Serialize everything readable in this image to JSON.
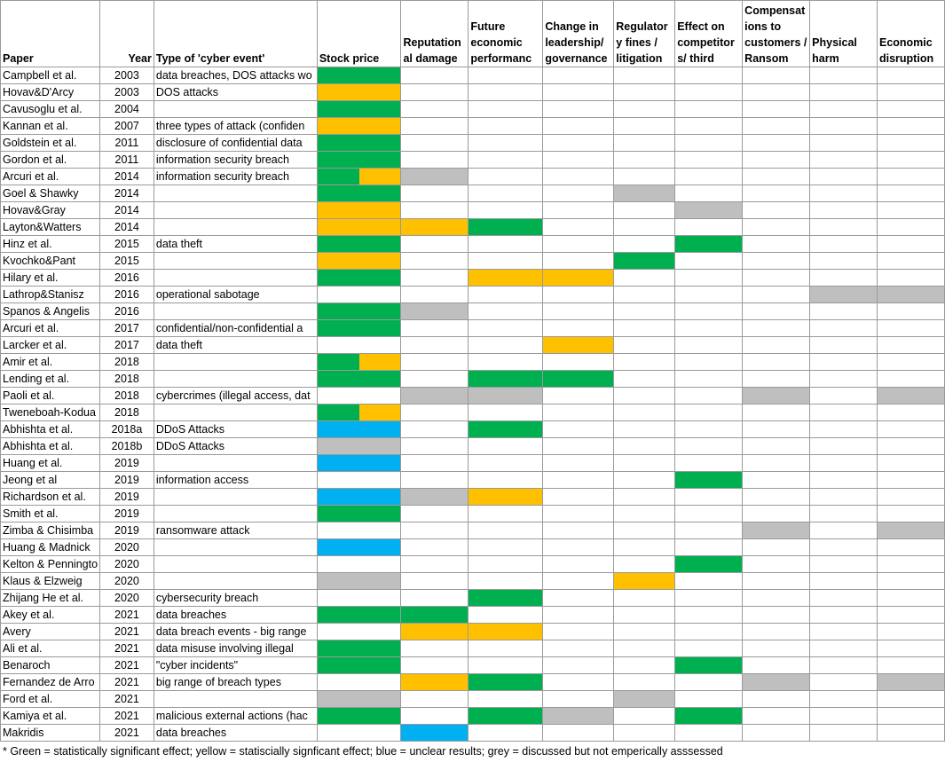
{
  "headers": [
    "Paper",
    "Year",
    "Type of 'cyber event'",
    "Stock price",
    "Reputation al damage",
    "Future economic performanc",
    "Change in leadership/ governance",
    "Regulator y fines / litigation",
    "Effect on competitor s/ third",
    "Compensat ions to customers / Ransom",
    "Physical harm",
    "Economic disruption"
  ],
  "colors": {
    "G": "#00b050",
    "Y": "#ffc000",
    "B": "#00b0f0",
    "R": "#bfbfbf"
  },
  "rows": [
    {
      "paper": "Campbell et al.",
      "year": "2003",
      "type": "data breaches, DOS attacks wo",
      "cells": [
        "G",
        "",
        "",
        "",
        "",
        "",
        "",
        "",
        ""
      ]
    },
    {
      "paper": "Hovav&D'Arcy",
      "year": "2003",
      "type": "DOS attacks",
      "cells": [
        "Y",
        "",
        "",
        "",
        "",
        "",
        "",
        "",
        ""
      ]
    },
    {
      "paper": "Cavusoglu et al.",
      "year": "2004",
      "type": "",
      "cells": [
        "G",
        "",
        "",
        "",
        "",
        "",
        "",
        "",
        ""
      ]
    },
    {
      "paper": "Kannan et al.",
      "year": "2007",
      "type": "three types of attack (confiden",
      "cells": [
        "Y",
        "",
        "",
        "",
        "",
        "",
        "",
        "",
        ""
      ]
    },
    {
      "paper": "Goldstein et al.",
      "year": "2011",
      "type": "disclosure of confidential data",
      "cells": [
        "G",
        "",
        "",
        "",
        "",
        "",
        "",
        "",
        ""
      ]
    },
    {
      "paper": "Gordon et al.",
      "year": "2011",
      "type": "information security breach",
      "cells": [
        "G",
        "",
        "",
        "",
        "",
        "",
        "",
        "",
        ""
      ]
    },
    {
      "paper": "Arcuri et al.",
      "year": "2014",
      "type": "information security breach",
      "cells": [
        "GY",
        "R",
        "",
        "",
        "",
        "",
        "",
        "",
        ""
      ]
    },
    {
      "paper": "Goel & Shawky",
      "year": "2014",
      "type": "",
      "cells": [
        "G",
        "",
        "",
        "",
        "R",
        "",
        "",
        "",
        ""
      ]
    },
    {
      "paper": "Hovav&Gray",
      "year": "2014",
      "type": "",
      "cells": [
        "Y",
        "",
        "",
        "",
        "",
        "R",
        "",
        "",
        ""
      ]
    },
    {
      "paper": "Layton&Watters",
      "year": "2014",
      "type": "",
      "cells": [
        "Y",
        "Y",
        "G",
        "",
        "",
        "",
        "",
        "",
        ""
      ]
    },
    {
      "paper": "Hinz et al.",
      "year": "2015",
      "type": "data theft",
      "cells": [
        "G",
        "",
        "",
        "",
        "",
        "G",
        "",
        "",
        ""
      ]
    },
    {
      "paper": "Kvochko&Pant",
      "year": "2015",
      "type": "",
      "cells": [
        "Y",
        "",
        "",
        "",
        "G",
        "",
        "",
        "",
        ""
      ]
    },
    {
      "paper": "Hilary et al.",
      "year": "2016",
      "type": "",
      "cells": [
        "G",
        "",
        "Y",
        "Y",
        "",
        "",
        "",
        "",
        ""
      ]
    },
    {
      "paper": "Lathrop&Stanisz",
      "year": "2016",
      "type": "operational sabotage",
      "cells": [
        "",
        "",
        "",
        "",
        "",
        "",
        "",
        "R",
        "R"
      ]
    },
    {
      "paper": "Spanos & Angelis",
      "year": "2016",
      "type": "",
      "cells": [
        "G",
        "R",
        "",
        "",
        "",
        "",
        "",
        "",
        ""
      ]
    },
    {
      "paper": "Arcuri et al.",
      "year": "2017",
      "type": "confidential/non-confidential a",
      "cells": [
        "G",
        "",
        "",
        "",
        "",
        "",
        "",
        "",
        ""
      ]
    },
    {
      "paper": "Larcker et al.",
      "year": "2017",
      "type": "data theft",
      "cells": [
        "",
        "",
        "",
        "Y",
        "",
        "",
        "",
        "",
        ""
      ]
    },
    {
      "paper": "Amir et al.",
      "year": "2018",
      "type": "",
      "cells": [
        "GY",
        "",
        "",
        "",
        "",
        "",
        "",
        "",
        ""
      ]
    },
    {
      "paper": "Lending et al.",
      "year": "2018",
      "type": "",
      "cells": [
        "G",
        "",
        "G",
        "G",
        "",
        "",
        "",
        "",
        ""
      ]
    },
    {
      "paper": "Paoli et al.",
      "year": "2018",
      "type": "cybercrimes (illegal access, dat",
      "cells": [
        "",
        "R",
        "R",
        "",
        "",
        "",
        "R",
        "",
        "R"
      ]
    },
    {
      "paper": "Tweneboah-Kodua",
      "year": "2018",
      "type": "",
      "cells": [
        "GY",
        "",
        "",
        "",
        "",
        "",
        "",
        "",
        ""
      ]
    },
    {
      "paper": "Abhishta et al.",
      "year": "2018a",
      "type": "DDoS Attacks",
      "cells": [
        "B",
        "",
        "G",
        "",
        "",
        "",
        "",
        "",
        ""
      ]
    },
    {
      "paper": "Abhishta et al.",
      "year": "2018b",
      "type": "DDoS Attacks",
      "cells": [
        "R",
        "",
        "",
        "",
        "",
        "",
        "",
        "",
        ""
      ]
    },
    {
      "paper": "Huang et al.",
      "year": "2019",
      "type": "",
      "cells": [
        "B",
        "",
        "",
        "",
        "",
        "",
        "",
        "",
        ""
      ]
    },
    {
      "paper": "Jeong et al",
      "year": "2019",
      "type": "information access",
      "cells": [
        "",
        "",
        "",
        "",
        "",
        "G",
        "",
        "",
        ""
      ]
    },
    {
      "paper": "Richardson et al.",
      "year": "2019",
      "type": "",
      "cells": [
        "B",
        "R",
        "Y",
        "",
        "",
        "",
        "",
        "",
        ""
      ]
    },
    {
      "paper": "Smith et al.",
      "year": "2019",
      "type": "",
      "cells": [
        "G",
        "",
        "",
        "",
        "",
        "",
        "",
        "",
        ""
      ]
    },
    {
      "paper": "Zimba & Chisimba",
      "year": "2019",
      "type": "ransomware attack",
      "cells": [
        "",
        "",
        "",
        "",
        "",
        "",
        "R",
        "",
        "R"
      ]
    },
    {
      "paper": "Huang & Madnick",
      "year": "2020",
      "type": "",
      "cells": [
        "B",
        "",
        "",
        "",
        "",
        "",
        "",
        "",
        ""
      ]
    },
    {
      "paper": "Kelton & Penningto",
      "year": "2020",
      "type": "",
      "cells": [
        "",
        "",
        "",
        "",
        "",
        "G",
        "",
        "",
        ""
      ]
    },
    {
      "paper": "Klaus & Elzweig",
      "year": "2020",
      "type": "",
      "cells": [
        "R",
        "",
        "",
        "",
        "Y",
        "",
        "",
        "",
        ""
      ]
    },
    {
      "paper": "Zhijang He et al.",
      "year": "2020",
      "type": "cybersecurity breach",
      "cells": [
        "",
        "",
        "G",
        "",
        "",
        "",
        "",
        "",
        ""
      ]
    },
    {
      "paper": "Akey et al.",
      "year": "2021",
      "type": "data breaches",
      "cells": [
        "G",
        "G",
        "",
        "",
        "",
        "",
        "",
        "",
        ""
      ]
    },
    {
      "paper": "Avery",
      "year": "2021",
      "type": "data breach events - big range",
      "cells": [
        "",
        "Y",
        "Y",
        "",
        "",
        "",
        "",
        "",
        ""
      ]
    },
    {
      "paper": "Ali et al.",
      "year": "2021",
      "type": "data misuse involving illegal",
      "cells": [
        "G",
        "",
        "",
        "",
        "",
        "",
        "",
        "",
        ""
      ]
    },
    {
      "paper": "Benaroch",
      "year": "2021",
      "type": "\"cyber incidents\"",
      "cells": [
        "G",
        "",
        "",
        "",
        "",
        "G",
        "",
        "",
        ""
      ]
    },
    {
      "paper": "Fernandez de Arro",
      "year": "2021",
      "type": "big range of breach types",
      "cells": [
        "",
        "Y",
        "G",
        "",
        "",
        "",
        "R",
        "",
        "R"
      ]
    },
    {
      "paper": "Ford et al.",
      "year": "2021",
      "type": "",
      "cells": [
        "R",
        "",
        "",
        "",
        "R",
        "",
        "",
        "",
        ""
      ]
    },
    {
      "paper": "Kamiya et al.",
      "year": "2021",
      "type": "malicious external actions (hac",
      "cells": [
        "G",
        "",
        "G",
        "R",
        "",
        "G",
        "",
        "",
        ""
      ]
    },
    {
      "paper": "Makridis",
      "year": "2021",
      "type": "data breaches",
      "cells": [
        "",
        "B",
        "",
        "",
        "",
        "",
        "",
        "",
        ""
      ]
    }
  ],
  "footnote": "* Green = statistically significant effect; yellow = statiscially signficant effect; blue = unclear results; grey = discussed but not emperically asssessed"
}
